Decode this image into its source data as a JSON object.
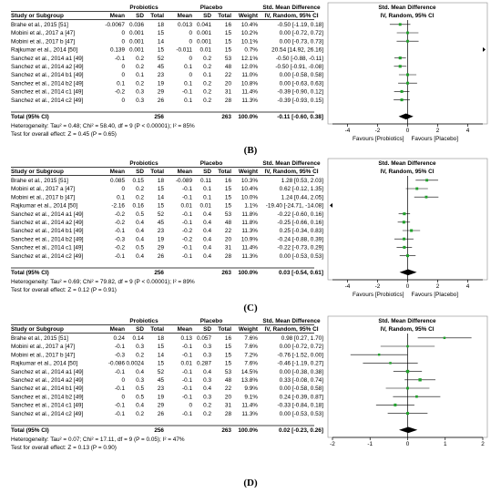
{
  "headers": {
    "study": "Study or Subgroup",
    "probiotics": "Probiotics",
    "placebo": "Placebo",
    "smd": "Std. Mean Difference",
    "mean": "Mean",
    "sd": "SD",
    "total": "Total",
    "weight": "Weight",
    "method": "IV, Random, 95% CI"
  },
  "chart_data": [
    {
      "type": "forest",
      "panel": "",
      "studies": [
        {
          "name": "Brahe et al., 2015 [51]",
          "p_mean": "-0.0067",
          "p_sd": "0.036",
          "p_total": "18",
          "c_mean": "0.013",
          "c_sd": "0.041",
          "c_total": "16",
          "weight": "10.4%",
          "ci_text": "-0.50 [-1.19, 0.18]",
          "est": -0.5,
          "lo": -1.19,
          "hi": 0.18
        },
        {
          "name": "Mobini et al., 2017 a [47]",
          "p_mean": "0",
          "p_sd": "0.001",
          "p_total": "15",
          "c_mean": "0",
          "c_sd": "0.001",
          "c_total": "15",
          "weight": "10.2%",
          "ci_text": "0.00 [-0.72, 0.72]",
          "est": 0.0,
          "lo": -0.72,
          "hi": 0.72
        },
        {
          "name": "Mobini et al., 2017 b [47]",
          "p_mean": "0",
          "p_sd": "0.001",
          "p_total": "14",
          "c_mean": "0",
          "c_sd": "0.001",
          "c_total": "15",
          "weight": "10.1%",
          "ci_text": "0.00 [-0.73, 0.73]",
          "est": 0.0,
          "lo": -0.73,
          "hi": 0.73
        },
        {
          "name": "Rajkumar et al., 2014 [50]",
          "p_mean": "0.139",
          "p_sd": "0.001",
          "p_total": "15",
          "c_mean": "-0.011",
          "c_sd": "0.01",
          "c_total": "15",
          "weight": "0.7%",
          "ci_text": "20.54 [14.92, 26.16]",
          "est": 20.54,
          "lo": 14.92,
          "hi": 26.16
        },
        {
          "name": "Sanchez et al., 2014 a1 [49]",
          "p_mean": "-0.1",
          "p_sd": "0.2",
          "p_total": "52",
          "c_mean": "0",
          "c_sd": "0.2",
          "c_total": "53",
          "weight": "12.1%",
          "ci_text": "-0.50 [-0.88, -0.11]",
          "est": -0.5,
          "lo": -0.88,
          "hi": -0.11
        },
        {
          "name": "Sanchez et al., 2014 a2 [49]",
          "p_mean": "0",
          "p_sd": "0.2",
          "p_total": "45",
          "c_mean": "0.1",
          "c_sd": "0.2",
          "c_total": "48",
          "weight": "12.0%",
          "ci_text": "-0.50 [-0.91, -0.08]",
          "est": -0.5,
          "lo": -0.91,
          "hi": -0.08
        },
        {
          "name": "Sanchez et al., 2014 b1 [49]",
          "p_mean": "0",
          "p_sd": "0.1",
          "p_total": "23",
          "c_mean": "0",
          "c_sd": "0.1",
          "c_total": "22",
          "weight": "11.0%",
          "ci_text": "0.00 [-0.58, 0.58]",
          "est": 0.0,
          "lo": -0.58,
          "hi": 0.58
        },
        {
          "name": "Sanchez et al., 2014 b2 [49]",
          "p_mean": "0.1",
          "p_sd": "0.2",
          "p_total": "19",
          "c_mean": "0.1",
          "c_sd": "0.2",
          "c_total": "20",
          "weight": "10.8%",
          "ci_text": "0.00 [-0.63, 0.63]",
          "est": 0.0,
          "lo": -0.63,
          "hi": 0.63
        },
        {
          "name": "Sanchez et al., 2014 c1 [49]",
          "p_mean": "-0.2",
          "p_sd": "0.3",
          "p_total": "29",
          "c_mean": "-0.1",
          "c_sd": "0.2",
          "c_total": "31",
          "weight": "11.4%",
          "ci_text": "-0.39 [-0.90, 0.12]",
          "est": -0.39,
          "lo": -0.9,
          "hi": 0.12
        },
        {
          "name": "Sanchez et al., 2014 c2 [49]",
          "p_mean": "0",
          "p_sd": "0.3",
          "p_total": "26",
          "c_mean": "0.1",
          "c_sd": "0.2",
          "c_total": "28",
          "weight": "11.3%",
          "ci_text": "-0.39 [-0.93, 0.15]",
          "est": -0.39,
          "lo": -0.93,
          "hi": 0.15
        }
      ],
      "total": {
        "label": "Total (95% CI)",
        "p_total": "256",
        "c_total": "263",
        "weight": "100.0%",
        "ci_text": "-0.11 [-0.60, 0.38]",
        "est": -0.11,
        "lo": -0.6,
        "hi": 0.38
      },
      "heterogeneity": "Heterogeneity: Tau² = 0.48; Chi² = 58.40, df = 9 (P < 0.00001); I² = 85%",
      "overall_test": "Test for overall effect: Z = 0.45 (P = 0.65)",
      "xlim": [
        -5,
        5
      ],
      "ticks": [
        "-4",
        "-2",
        "0",
        "2",
        "4"
      ],
      "tick_values": [
        -4,
        -2,
        0,
        2,
        4
      ],
      "favours_left": "Favours [Probiotics]",
      "favours_right": "Favours [Placebo]"
    },
    {
      "type": "forest",
      "panel": "(B)",
      "studies": [
        {
          "name": "Brahe et al., 2015 [51]",
          "p_mean": "0.085",
          "p_sd": "0.15",
          "p_total": "18",
          "c_mean": "-0.089",
          "c_sd": "0.11",
          "c_total": "16",
          "weight": "10.3%",
          "ci_text": "1.28 [0.53, 2.03]",
          "est": 1.28,
          "lo": 0.53,
          "hi": 2.03
        },
        {
          "name": "Mobini et al., 2017 a [47]",
          "p_mean": "0",
          "p_sd": "0.2",
          "p_total": "15",
          "c_mean": "-0.1",
          "c_sd": "0.1",
          "c_total": "15",
          "weight": "10.4%",
          "ci_text": "0.62 [-0.12, 1.35]",
          "est": 0.62,
          "lo": -0.12,
          "hi": 1.35
        },
        {
          "name": "Mobini et al., 2017 b [47]",
          "p_mean": "0.1",
          "p_sd": "0.2",
          "p_total": "14",
          "c_mean": "-0.1",
          "c_sd": "0.1",
          "c_total": "15",
          "weight": "10.0%",
          "ci_text": "1.24 [0.44, 2.05]",
          "est": 1.24,
          "lo": 0.44,
          "hi": 2.05
        },
        {
          "name": "Rajkumar et al., 2014 [50]",
          "p_mean": "-2.16",
          "p_sd": "0.16",
          "p_total": "15",
          "c_mean": "0.01",
          "c_sd": "0.01",
          "c_total": "15",
          "weight": "1.1%",
          "ci_text": "-19.40 [-24.71, -14.08]",
          "est": -19.4,
          "lo": -24.71,
          "hi": -14.08
        },
        {
          "name": "Sanchez et al., 2014 a1 [49]",
          "p_mean": "-0.2",
          "p_sd": "0.5",
          "p_total": "52",
          "c_mean": "-0.1",
          "c_sd": "0.4",
          "c_total": "53",
          "weight": "11.8%",
          "ci_text": "-0.22 [-0.60, 0.16]",
          "est": -0.22,
          "lo": -0.6,
          "hi": 0.16
        },
        {
          "name": "Sanchez et al., 2014 a2 [49]",
          "p_mean": "-0.2",
          "p_sd": "0.4",
          "p_total": "45",
          "c_mean": "-0.1",
          "c_sd": "0.4",
          "c_total": "48",
          "weight": "11.8%",
          "ci_text": "-0.25 [-0.66, 0.16]",
          "est": -0.25,
          "lo": -0.66,
          "hi": 0.16
        },
        {
          "name": "Sanchez et al., 2014 b1 [49]",
          "p_mean": "-0.1",
          "p_sd": "0.4",
          "p_total": "23",
          "c_mean": "-0.2",
          "c_sd": "0.4",
          "c_total": "22",
          "weight": "11.3%",
          "ci_text": "0.25 [-0.34, 0.83]",
          "est": 0.25,
          "lo": -0.34,
          "hi": 0.83
        },
        {
          "name": "Sanchez et al., 2014 b2 [49]",
          "p_mean": "-0.3",
          "p_sd": "0.4",
          "p_total": "19",
          "c_mean": "-0.2",
          "c_sd": "0.4",
          "c_total": "20",
          "weight": "10.9%",
          "ci_text": "-0.24 [-0.88, 0.39]",
          "est": -0.24,
          "lo": -0.88,
          "hi": 0.39
        },
        {
          "name": "Sanchez et al., 2014 c1 [49]",
          "p_mean": "-0.2",
          "p_sd": "0.5",
          "p_total": "29",
          "c_mean": "-0.1",
          "c_sd": "0.4",
          "c_total": "31",
          "weight": "11.4%",
          "ci_text": "-0.22 [-0.73, 0.29]",
          "est": -0.22,
          "lo": -0.73,
          "hi": 0.29
        },
        {
          "name": "Sanchez et al., 2014 c2 [49]",
          "p_mean": "-0.1",
          "p_sd": "0.4",
          "p_total": "26",
          "c_mean": "-0.1",
          "c_sd": "0.4",
          "c_total": "28",
          "weight": "11.3%",
          "ci_text": "0.00 [-0.53, 0.53]",
          "est": 0.0,
          "lo": -0.53,
          "hi": 0.53
        }
      ],
      "total": {
        "label": "Total (95% CI)",
        "p_total": "256",
        "c_total": "263",
        "weight": "100.0%",
        "ci_text": "0.03 [-0.54, 0.61]",
        "est": 0.03,
        "lo": -0.54,
        "hi": 0.61
      },
      "heterogeneity": "Heterogeneity: Tau² = 0.69; Chi² = 79.82, df = 9 (P < 0.00001); I² = 89%",
      "overall_test": "Test for overall effect: Z = 0.12 (P = 0.91)",
      "xlim": [
        -5,
        5
      ],
      "ticks": [
        "-4",
        "-2",
        "0",
        "2",
        "4"
      ],
      "tick_values": [
        -4,
        -2,
        0,
        2,
        4
      ],
      "favours_left": "Favours [Probiotics]",
      "favours_right": "Favours [Placebo]"
    },
    {
      "type": "forest",
      "panel": "(C)",
      "studies": [
        {
          "name": "Brahe et al., 2015 [51]",
          "p_mean": "0.24",
          "p_sd": "0.14",
          "p_total": "18",
          "c_mean": "0.13",
          "c_sd": "0.057",
          "c_total": "16",
          "weight": "7.6%",
          "ci_text": "0.98 [0.27, 1.70]",
          "est": 0.98,
          "lo": 0.27,
          "hi": 1.7
        },
        {
          "name": "Mobini et al., 2017 a [47]",
          "p_mean": "-0.1",
          "p_sd": "0.3",
          "p_total": "15",
          "c_mean": "-0.1",
          "c_sd": "0.3",
          "c_total": "15",
          "weight": "7.6%",
          "ci_text": "0.00 [-0.72, 0.72]",
          "est": 0.0,
          "lo": -0.72,
          "hi": 0.72
        },
        {
          "name": "Mobini et al., 2017 b [47]",
          "p_mean": "-0.3",
          "p_sd": "0.2",
          "p_total": "14",
          "c_mean": "-0.1",
          "c_sd": "0.3",
          "c_total": "15",
          "weight": "7.2%",
          "ci_text": "-0.76 [-1.52, 0.00]",
          "est": -0.76,
          "lo": -1.52,
          "hi": 0.0
        },
        {
          "name": "Rajkumar et al., 2014 [50]",
          "p_mean": "-0.086",
          "p_sd": "0.0024",
          "p_total": "15",
          "c_mean": "0.01",
          "c_sd": "0.287",
          "c_total": "15",
          "weight": "7.6%",
          "ci_text": "-0.46 [-1.19, 0.27]",
          "est": -0.46,
          "lo": -1.19,
          "hi": 0.27
        },
        {
          "name": "Sanchez et al., 2014 a1 [49]",
          "p_mean": "-0.1",
          "p_sd": "0.4",
          "p_total": "52",
          "c_mean": "-0.1",
          "c_sd": "0.4",
          "c_total": "53",
          "weight": "14.5%",
          "ci_text": "0.00 [-0.38, 0.38]",
          "est": 0.0,
          "lo": -0.38,
          "hi": 0.38
        },
        {
          "name": "Sanchez et al., 2014 a2 [49]",
          "p_mean": "0",
          "p_sd": "0.3",
          "p_total": "45",
          "c_mean": "-0.1",
          "c_sd": "0.3",
          "c_total": "48",
          "weight": "13.8%",
          "ci_text": "0.33 [-0.08, 0.74]",
          "est": 0.33,
          "lo": -0.08,
          "hi": 0.74
        },
        {
          "name": "Sanchez et al., 2014 b1 [49]",
          "p_mean": "-0.1",
          "p_sd": "0.5",
          "p_total": "23",
          "c_mean": "-0.1",
          "c_sd": "0.4",
          "c_total": "22",
          "weight": "9.9%",
          "ci_text": "0.00 [-0.58, 0.58]",
          "est": 0.0,
          "lo": -0.58,
          "hi": 0.58
        },
        {
          "name": "Sanchez et al., 2014 b2 [49]",
          "p_mean": "0",
          "p_sd": "0.5",
          "p_total": "19",
          "c_mean": "-0.1",
          "c_sd": "0.3",
          "c_total": "20",
          "weight": "9.1%",
          "ci_text": "0.24 [-0.39, 0.87]",
          "est": 0.24,
          "lo": -0.39,
          "hi": 0.87
        },
        {
          "name": "Sanchez et al., 2014 c1 [49]",
          "p_mean": "-0.1",
          "p_sd": "0.4",
          "p_total": "29",
          "c_mean": "0",
          "c_sd": "0.2",
          "c_total": "31",
          "weight": "11.4%",
          "ci_text": "-0.33 [-0.84, 0.18]",
          "est": -0.33,
          "lo": -0.84,
          "hi": 0.18
        },
        {
          "name": "Sanchez et al., 2014 c2 [49]",
          "p_mean": "-0.1",
          "p_sd": "0.2",
          "p_total": "26",
          "c_mean": "-0.1",
          "c_sd": "0.2",
          "c_total": "28",
          "weight": "11.3%",
          "ci_text": "0.00 [-0.53, 0.53]",
          "est": 0.0,
          "lo": -0.53,
          "hi": 0.53
        }
      ],
      "total": {
        "label": "Total (95% CI)",
        "p_total": "256",
        "c_total": "263",
        "weight": "100.0%",
        "ci_text": "0.02 [-0.23, 0.26]",
        "est": 0.02,
        "lo": -0.23,
        "hi": 0.26
      },
      "heterogeneity": "Heterogeneity: Tau² = 0.07; Chi² = 17.11, df = 9 (P = 0.05); I² = 47%",
      "overall_test": "Test for overall effect: Z = 0.13 (P = 0.90)",
      "xlim": [
        -2,
        2
      ],
      "ticks": [
        "-2",
        "-1",
        "0",
        "1",
        "2"
      ],
      "tick_values": [
        -2,
        -1,
        0,
        1,
        2
      ],
      "favours_left": "",
      "favours_right": ""
    }
  ],
  "footer_panel": "(D)",
  "colors": {
    "marker": "#21a12b",
    "line": "#000000",
    "gray_line": "#8c8c8c"
  }
}
